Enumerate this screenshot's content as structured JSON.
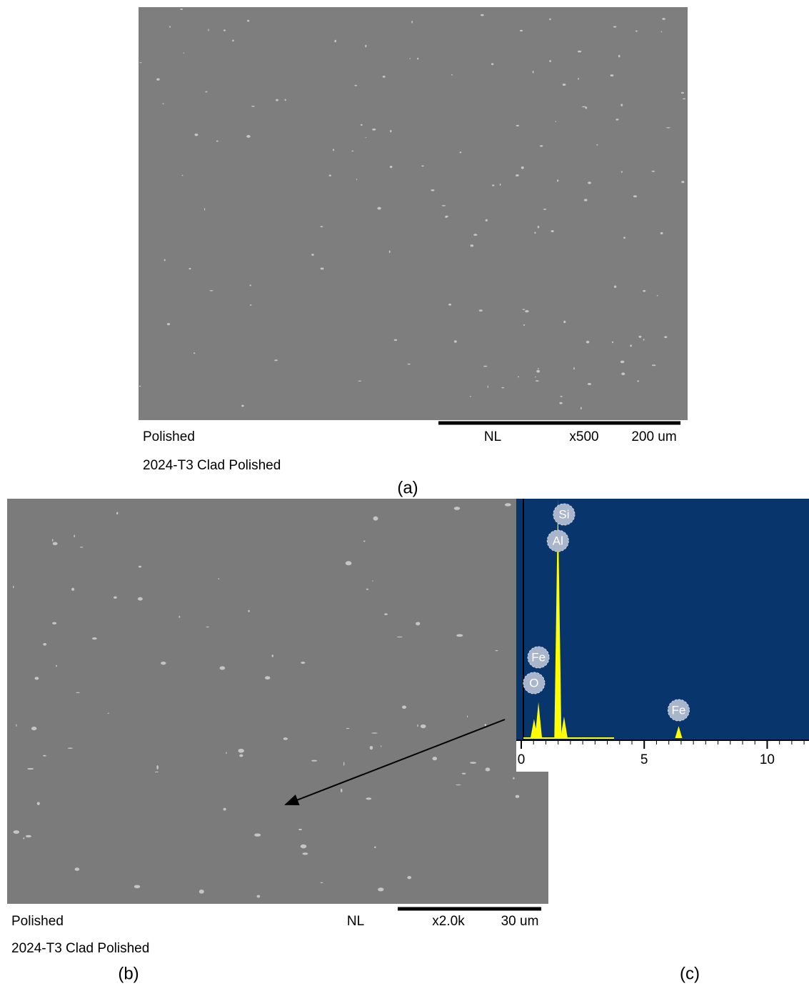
{
  "panel_a": {
    "caption": "(a)",
    "note": "Polished",
    "mode": "NL",
    "magnification": "x500",
    "scale": "200 um",
    "sample": "2024-T3 Clad Polished"
  },
  "panel_b": {
    "caption": "(b)",
    "note": "Polished",
    "mode": "NL",
    "magnification": "x2.0k",
    "scale": "30 um",
    "sample": "2024-T3 Clad Polished"
  },
  "panel_c": {
    "caption": "(c)",
    "xlim": [
      0,
      11.7
    ],
    "ylim": [
      0,
      100
    ],
    "xticks": [
      0,
      5,
      10
    ],
    "peaks": [
      {
        "label": "O",
        "energy": 0.52,
        "height": 8
      },
      {
        "label": "Fe",
        "energy": 0.7,
        "height": 15
      },
      {
        "label": "Al",
        "energy": 1.49,
        "height": 100
      },
      {
        "label": "Si",
        "energy": 1.74,
        "height": 9
      },
      {
        "label": "Fe",
        "energy": 6.4,
        "height": 5
      }
    ]
  }
}
